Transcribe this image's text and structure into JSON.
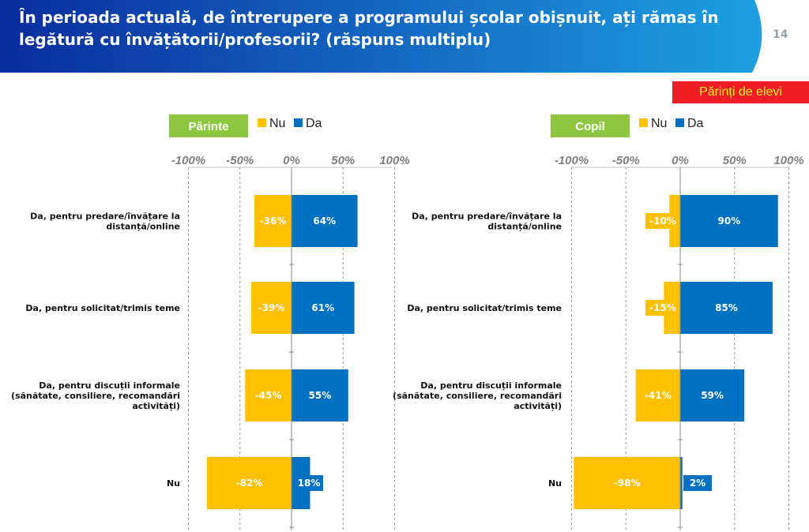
{
  "header": {
    "title": "În perioada actuală, de întrerupere a programului școlar obișnuit, ați rămas în legătură cu învățătorii/profesorii? (răspuns multiplu)",
    "page_number": "14"
  },
  "audience_badge": "Părinți de elevi",
  "colors": {
    "nu": "#ffc000",
    "da": "#0070c0",
    "panel_label": "#8dc63f",
    "badge_bg": "#ee1c25",
    "badge_text": "#f7f01a",
    "header_dark": "#0a2d9e",
    "header_light": "#1e9fe2"
  },
  "chart_data": [
    {
      "type": "bar",
      "orientation": "horizontal-diverging",
      "panel_label": "Părinte",
      "categories": [
        "Da, pentru predare/învățare la distanță/online",
        "Da, pentru solicitat/trimis teme",
        "Da, pentru discuții informale (sănătate, consiliere, recomandări activități)",
        "Nu"
      ],
      "category_lines": [
        [
          "Da, pentru predare/învățare la",
          "distanță/online"
        ],
        [
          "Da, pentru solicitat/trimis teme"
        ],
        [
          "Da, pentru discuții informale",
          "(sănătate, consiliere, recomandări",
          "activități)"
        ],
        [
          "Nu"
        ]
      ],
      "series": [
        {
          "name": "Nu",
          "values": [
            -36,
            -39,
            -45,
            -82
          ],
          "labels": [
            "-36%",
            "-39%",
            "-45%",
            "-82%"
          ]
        },
        {
          "name": "Da",
          "values": [
            64,
            61,
            55,
            18
          ],
          "labels": [
            "64%",
            "61%",
            "55%",
            "18%"
          ]
        }
      ],
      "xlim": [
        -100,
        100
      ],
      "ticks": [
        -100,
        -50,
        0,
        50,
        100
      ],
      "tick_labels": [
        "-100%",
        "-50%",
        "0%",
        "50%",
        "100%"
      ],
      "legend": [
        "Nu",
        "Da"
      ],
      "legend_position": "top"
    },
    {
      "type": "bar",
      "orientation": "horizontal-diverging",
      "panel_label": "Copil",
      "categories": [
        "Da, pentru predare/învățare la distanță/online",
        "Da, pentru solicitat/trimis teme",
        "Da, pentru discuții informale (sănătate, consiliere, recomandări activități)",
        "Nu"
      ],
      "category_lines": [
        [
          "Da, pentru predare/învățare la",
          "distanță/online"
        ],
        [
          "Da, pentru solicitat/trimis teme"
        ],
        [
          "Da, pentru discuții informale",
          "(sănătate, consiliere, recomandări",
          "activități)"
        ],
        [
          "Nu"
        ]
      ],
      "series": [
        {
          "name": "Nu",
          "values": [
            -10,
            -15,
            -41,
            -98
          ],
          "labels": [
            "-10%",
            "-15%",
            "-41%",
            "-98%"
          ]
        },
        {
          "name": "Da",
          "values": [
            90,
            85,
            59,
            2
          ],
          "labels": [
            "90%",
            "85%",
            "59%",
            "2%"
          ]
        }
      ],
      "xlim": [
        -100,
        100
      ],
      "ticks": [
        -100,
        -50,
        0,
        50,
        100
      ],
      "tick_labels": [
        "-100%",
        "-50%",
        "0%",
        "50%",
        "100%"
      ],
      "legend": [
        "Nu",
        "Da"
      ],
      "legend_position": "top"
    }
  ]
}
